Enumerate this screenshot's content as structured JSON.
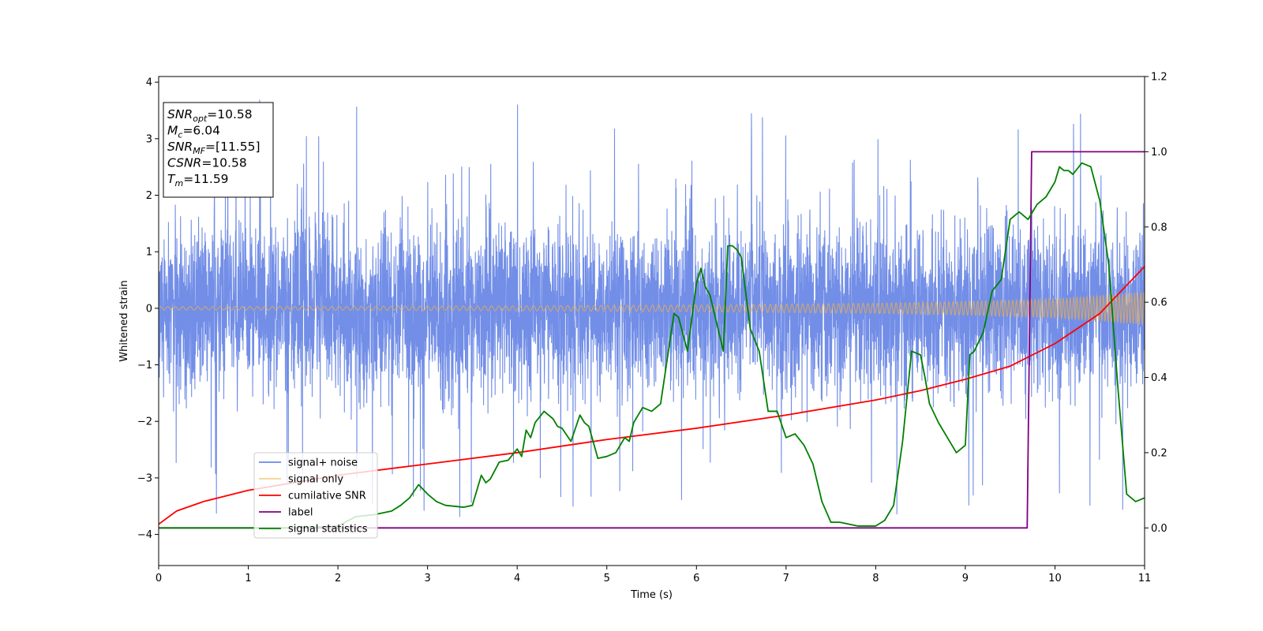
{
  "chart_data": {
    "type": "line",
    "xlabel": "Time (s)",
    "ylabel": "Whitened strain",
    "xlim": [
      0,
      11
    ],
    "ylim_left": [
      -4.55,
      4.1
    ],
    "ylim_right": [
      -0.1,
      1.2
    ],
    "x_ticks": [
      0,
      1,
      2,
      3,
      4,
      5,
      6,
      7,
      8,
      9,
      10,
      11
    ],
    "y_ticks_left": [
      -4,
      -3,
      -2,
      -1,
      0,
      1,
      2,
      3,
      4
    ],
    "y_ticks_right": [
      0.0,
      0.2,
      0.4,
      0.6,
      0.8,
      1.0,
      1.2
    ],
    "grid": false,
    "legend_position": "lower-left",
    "series": [
      {
        "name": "signal+ noise",
        "axis": "left",
        "color": "#6a88e6",
        "kind": "noise",
        "description_values": {
          "sample_rate_hz": 512,
          "amplitude_core": 1.5,
          "max": 3.7,
          "min": -3.7
        }
      },
      {
        "name": "signal only",
        "axis": "left",
        "color": "#f5b041",
        "kind": "chirp_envelope",
        "envelope": {
          "x": [
            0,
            2,
            4,
            6,
            8,
            9,
            10,
            10.5,
            11
          ],
          "y": [
            0.03,
            0.035,
            0.045,
            0.06,
            0.09,
            0.12,
            0.17,
            0.22,
            0.29
          ]
        }
      },
      {
        "name": "cumilative SNR",
        "axis": "right",
        "color": "#ff0000",
        "x": [
          0,
          0.2,
          0.5,
          1,
          2,
          3,
          4,
          5,
          6,
          7,
          8,
          8.5,
          9,
          9.5,
          10,
          10.5,
          11
        ],
        "y": [
          0.01,
          0.045,
          0.07,
          0.1,
          0.14,
          0.17,
          0.2,
          0.235,
          0.265,
          0.3,
          0.34,
          0.365,
          0.395,
          0.43,
          0.49,
          0.57,
          0.695
        ]
      },
      {
        "name": "label",
        "axis": "right",
        "color": "#800080",
        "x": [
          0,
          9.69,
          9.74,
          11
        ],
        "y": [
          0.0,
          0.0,
          1.0,
          1.0
        ]
      },
      {
        "name": "signal statistics",
        "axis": "right",
        "color": "#008000",
        "x": [
          0,
          0.5,
          1,
          1.5,
          2,
          2.2,
          2.4,
          2.6,
          2.7,
          2.8,
          2.9,
          3.0,
          3.1,
          3.2,
          3.4,
          3.5,
          3.6,
          3.65,
          3.7,
          3.8,
          3.9,
          4.0,
          4.05,
          4.1,
          4.15,
          4.2,
          4.3,
          4.4,
          4.45,
          4.5,
          4.6,
          4.7,
          4.75,
          4.8,
          4.9,
          5.0,
          5.1,
          5.2,
          5.25,
          5.3,
          5.4,
          5.5,
          5.6,
          5.7,
          5.75,
          5.8,
          5.9,
          6.0,
          6.05,
          6.1,
          6.15,
          6.2,
          6.3,
          6.35,
          6.4,
          6.45,
          6.5,
          6.6,
          6.7,
          6.8,
          6.9,
          7.0,
          7.1,
          7.2,
          7.3,
          7.4,
          7.5,
          7.6,
          7.8,
          7.9,
          8.0,
          8.1,
          8.2,
          8.3,
          8.4,
          8.5,
          8.55,
          8.6,
          8.7,
          8.8,
          8.9,
          9.0,
          9.05,
          9.1,
          9.2,
          9.3,
          9.4,
          9.5,
          9.6,
          9.7,
          9.8,
          9.9,
          10.0,
          10.05,
          10.1,
          10.15,
          10.2,
          10.3,
          10.4,
          10.5,
          10.6,
          10.7,
          10.8,
          10.9,
          11.0
        ],
        "y": [
          0.0,
          0.0,
          0.0,
          0.0,
          0.005,
          0.03,
          0.035,
          0.045,
          0.06,
          0.08,
          0.115,
          0.09,
          0.07,
          0.06,
          0.055,
          0.06,
          0.14,
          0.12,
          0.13,
          0.175,
          0.18,
          0.21,
          0.19,
          0.26,
          0.24,
          0.28,
          0.31,
          0.29,
          0.27,
          0.265,
          0.23,
          0.3,
          0.28,
          0.27,
          0.185,
          0.19,
          0.2,
          0.24,
          0.23,
          0.28,
          0.32,
          0.31,
          0.33,
          0.49,
          0.57,
          0.56,
          0.47,
          0.65,
          0.69,
          0.64,
          0.62,
          0.57,
          0.47,
          0.75,
          0.75,
          0.74,
          0.72,
          0.53,
          0.47,
          0.31,
          0.31,
          0.24,
          0.25,
          0.22,
          0.17,
          0.07,
          0.015,
          0.015,
          0.005,
          0.005,
          0.005,
          0.02,
          0.06,
          0.23,
          0.47,
          0.46,
          0.4,
          0.33,
          0.28,
          0.24,
          0.2,
          0.22,
          0.46,
          0.47,
          0.52,
          0.63,
          0.66,
          0.82,
          0.84,
          0.82,
          0.86,
          0.88,
          0.92,
          0.96,
          0.95,
          0.95,
          0.94,
          0.97,
          0.96,
          0.87,
          0.7,
          0.38,
          0.09,
          0.07,
          0.08
        ]
      }
    ]
  },
  "info_box": [
    {
      "main": "SNR",
      "sub": "opt",
      "rest": "=10.58"
    },
    {
      "main": "M",
      "sub": "c",
      "rest": "=6.04"
    },
    {
      "main": "SNR",
      "sub": "MF",
      "rest": "=[11.55]"
    },
    {
      "main": "CSNR",
      "sub": "",
      "rest": "=10.58"
    },
    {
      "main": "T",
      "sub": "m",
      "rest": "=11.59"
    }
  ]
}
